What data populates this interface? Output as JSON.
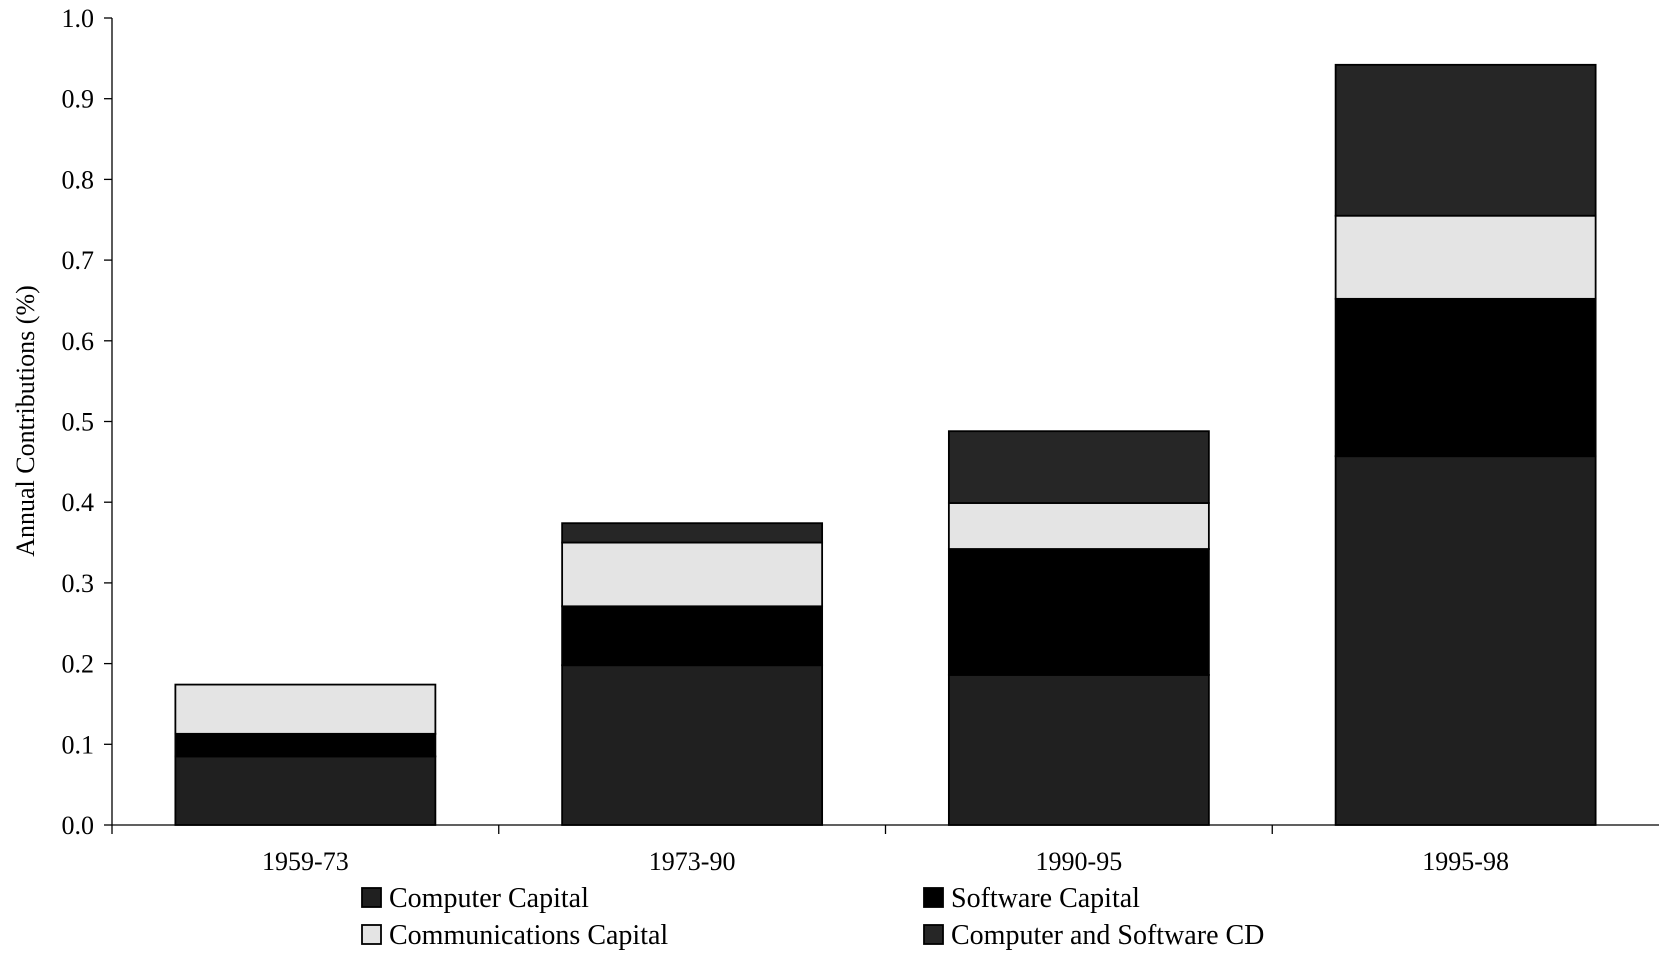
{
  "chart_data": {
    "type": "bar",
    "stacked": true,
    "categories": [
      "1959-73",
      "1973-90",
      "1990-95",
      "1995-98"
    ],
    "series": [
      {
        "name": "Computer Capital",
        "color": "#202020",
        "values": [
          0.085,
          0.198,
          0.186,
          0.457
        ]
      },
      {
        "name": "Software Capital",
        "color": "#000000",
        "values": [
          0.028,
          0.073,
          0.156,
          0.195
        ]
      },
      {
        "name": "Communications Capital",
        "color": "#e4e4e4",
        "values": [
          0.061,
          0.079,
          0.057,
          0.103
        ]
      },
      {
        "name": "Computer and Software CD",
        "color": "#262626",
        "values": [
          0.0,
          0.024,
          0.089,
          0.187
        ]
      }
    ],
    "title": "",
    "xlabel": "",
    "ylabel": "Annual Contributions (%)",
    "ylim": [
      0,
      1.0
    ],
    "yticks": [
      "0.0",
      "0.1",
      "0.2",
      "0.3",
      "0.4",
      "0.5",
      "0.6",
      "0.7",
      "0.8",
      "0.9",
      "1.0"
    ],
    "grid": false,
    "legend": "bottom"
  }
}
